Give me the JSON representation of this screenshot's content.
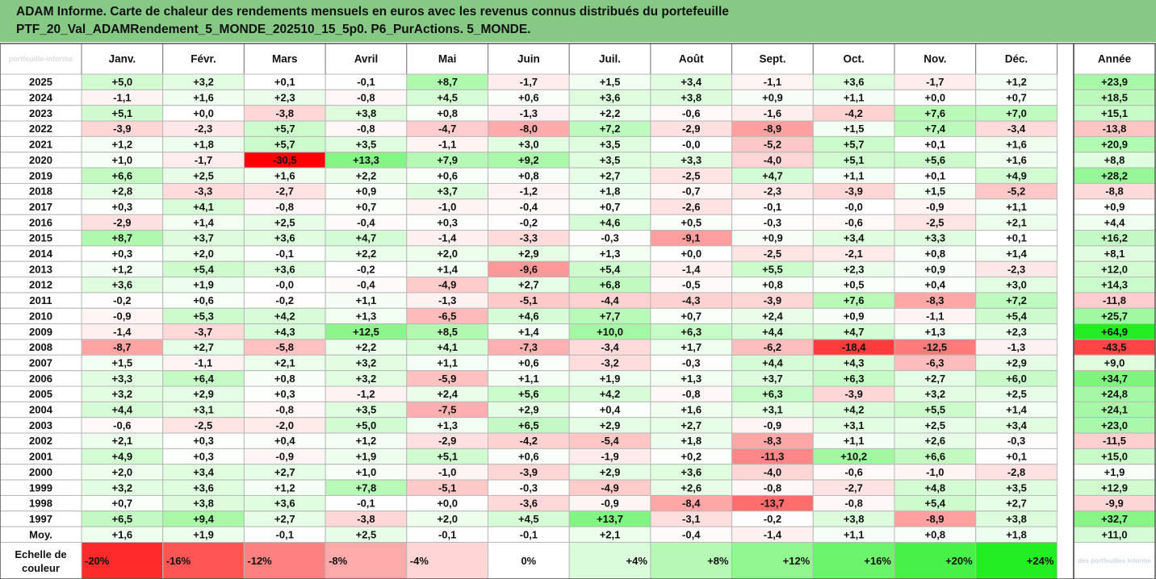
{
  "title": {
    "line1": "ADAM Informe. Carte de chaleur des rendements mensuels en euros avec les revenus connus distribués du portefeuille",
    "line2": "PTF_20_Val_ADAMRendement_5_MONDE_202510_15_5p0. P6_PurActions. 5_MONDE."
  },
  "corner_watermark": "portfeuille-informe",
  "footer_watermark": "des portfeuilles informe",
  "chart_data": {
    "type": "heatmap",
    "months": [
      "Janv.",
      "Févr.",
      "Mars",
      "Avril",
      "Mai",
      "Juin",
      "Juil.",
      "Août",
      "Sept.",
      "Oct.",
      "Nov.",
      "Déc."
    ],
    "year_header": "Année",
    "rows": [
      {
        "label": "2025",
        "values": [
          5.0,
          3.2,
          0.1,
          -0.1,
          8.7,
          -1.7,
          1.5,
          3.4,
          -1.1,
          3.6,
          -1.7,
          1.2
        ],
        "year": 23.9
      },
      {
        "label": "2024",
        "values": [
          -1.1,
          1.6,
          2.3,
          -0.8,
          4.5,
          0.6,
          3.6,
          3.8,
          0.9,
          1.1,
          0.0,
          0.7
        ],
        "year": 18.5
      },
      {
        "label": "2023",
        "values": [
          5.1,
          0.0,
          -3.8,
          3.8,
          0.8,
          -1.3,
          2.2,
          -0.6,
          -1.6,
          -4.2,
          7.6,
          7.0
        ],
        "year": 15.1
      },
      {
        "label": "2022",
        "values": [
          -3.9,
          -2.3,
          5.7,
          -0.8,
          -4.7,
          -8.0,
          7.2,
          -2.9,
          -8.9,
          1.5,
          7.4,
          -3.4
        ],
        "year": -13.8
      },
      {
        "label": "2021",
        "values": [
          1.2,
          1.8,
          5.7,
          3.5,
          -1.1,
          3.0,
          3.5,
          -0.0,
          -5.2,
          5.7,
          0.1,
          1.6
        ],
        "year": 20.9
      },
      {
        "label": "2020",
        "values": [
          1.0,
          -1.7,
          -30.5,
          13.3,
          7.9,
          9.2,
          3.5,
          3.3,
          -4.0,
          5.1,
          5.6,
          1.6
        ],
        "year": 8.8
      },
      {
        "label": "2019",
        "values": [
          6.6,
          2.5,
          1.6,
          2.2,
          0.6,
          0.8,
          2.7,
          -2.5,
          4.7,
          1.1,
          0.1,
          4.9
        ],
        "year": 28.2
      },
      {
        "label": "2018",
        "values": [
          2.8,
          -3.3,
          -2.7,
          0.9,
          3.7,
          -1.2,
          1.8,
          -0.7,
          -2.3,
          -3.9,
          1.5,
          -5.2
        ],
        "year": -8.8
      },
      {
        "label": "2017",
        "values": [
          0.3,
          4.1,
          -0.8,
          0.7,
          -1.0,
          -0.4,
          0.7,
          -2.6,
          -0.1,
          -0.0,
          -0.9,
          1.1
        ],
        "year": 0.9
      },
      {
        "label": "2016",
        "values": [
          -2.9,
          1.4,
          2.5,
          -0.4,
          0.3,
          -0.2,
          4.6,
          0.5,
          -0.3,
          -0.6,
          -2.5,
          2.1
        ],
        "year": 4.4
      },
      {
        "label": "2015",
        "values": [
          8.7,
          3.7,
          3.6,
          4.7,
          -1.4,
          -3.3,
          -0.3,
          -9.1,
          0.9,
          3.4,
          3.3,
          0.1
        ],
        "year": 16.2
      },
      {
        "label": "2014",
        "values": [
          0.3,
          2.0,
          -0.1,
          2.2,
          2.0,
          2.9,
          1.3,
          0.0,
          -2.5,
          -2.1,
          0.8,
          1.4
        ],
        "year": 8.1
      },
      {
        "label": "2013",
        "values": [
          1.2,
          5.4,
          3.6,
          -0.2,
          1.4,
          -9.6,
          5.4,
          -1.4,
          5.5,
          2.3,
          0.9,
          -2.3
        ],
        "year": 12.0
      },
      {
        "label": "2012",
        "values": [
          3.6,
          1.9,
          -0.0,
          -0.4,
          -4.9,
          2.7,
          6.8,
          -0.5,
          0.8,
          0.5,
          0.4,
          3.0
        ],
        "year": 14.3
      },
      {
        "label": "2011",
        "values": [
          -0.2,
          0.6,
          -0.2,
          1.1,
          -1.3,
          -5.1,
          -4.4,
          -4.3,
          -3.9,
          7.6,
          -8.3,
          7.2
        ],
        "year": -11.8
      },
      {
        "label": "2010",
        "values": [
          -0.9,
          5.3,
          4.2,
          1.3,
          -6.5,
          4.6,
          7.7,
          0.7,
          2.4,
          0.9,
          -1.1,
          5.4
        ],
        "year": 25.7
      },
      {
        "label": "2009",
        "values": [
          -1.4,
          -3.7,
          4.3,
          12.5,
          8.5,
          1.4,
          10.0,
          6.3,
          4.4,
          4.7,
          1.3,
          2.3
        ],
        "year": 64.9
      },
      {
        "label": "2008",
        "values": [
          -8.7,
          2.7,
          -5.8,
          2.2,
          4.1,
          -7.3,
          -3.4,
          1.7,
          -6.2,
          -18.4,
          -12.5,
          -1.3
        ],
        "year": -43.5
      },
      {
        "label": "2007",
        "values": [
          1.5,
          -1.1,
          2.1,
          3.2,
          1.1,
          0.6,
          -3.2,
          -0.3,
          4.4,
          4.3,
          -6.3,
          2.9
        ],
        "year": 9.0
      },
      {
        "label": "2006",
        "values": [
          3.3,
          6.4,
          0.8,
          3.2,
          -5.9,
          1.1,
          1.9,
          1.3,
          3.7,
          6.3,
          2.7,
          6.0
        ],
        "year": 34.7
      },
      {
        "label": "2005",
        "values": [
          3.2,
          2.9,
          0.3,
          -1.2,
          2.4,
          5.6,
          4.2,
          -0.8,
          6.3,
          -3.9,
          3.2,
          2.5
        ],
        "year": 24.8
      },
      {
        "label": "2004",
        "values": [
          4.4,
          3.1,
          -0.8,
          3.5,
          -7.5,
          2.9,
          0.4,
          1.6,
          3.1,
          4.2,
          5.5,
          1.4
        ],
        "year": 24.1
      },
      {
        "label": "2003",
        "values": [
          -0.6,
          -2.5,
          -2.0,
          5.0,
          1.3,
          6.5,
          2.9,
          2.7,
          -0.9,
          3.1,
          2.5,
          3.4
        ],
        "year": 23.0
      },
      {
        "label": "2002",
        "values": [
          2.1,
          0.3,
          0.4,
          1.2,
          -2.9,
          -4.2,
          -5.4,
          1.8,
          -8.3,
          1.1,
          2.6,
          -0.3
        ],
        "year": -11.5
      },
      {
        "label": "2001",
        "values": [
          4.9,
          0.3,
          -0.9,
          1.9,
          5.1,
          0.6,
          -1.9,
          0.2,
          -11.3,
          10.2,
          6.6,
          0.1
        ],
        "year": 15.0
      },
      {
        "label": "2000",
        "values": [
          2.0,
          3.4,
          2.7,
          1.0,
          -1.0,
          -3.9,
          2.9,
          3.6,
          -4.0,
          -0.6,
          -1.0,
          -2.8
        ],
        "year": 1.9
      },
      {
        "label": "1999",
        "values": [
          3.2,
          3.6,
          1.2,
          7.8,
          -5.1,
          -0.3,
          -4.9,
          2.6,
          -0.8,
          -2.7,
          4.8,
          3.5
        ],
        "year": 12.9
      },
      {
        "label": "1998",
        "values": [
          0.7,
          3.8,
          3.6,
          -0.1,
          0.0,
          -3.6,
          -0.9,
          -8.4,
          -13.7,
          -0.8,
          5.4,
          2.7
        ],
        "year": -9.9
      },
      {
        "label": "1997",
        "values": [
          6.5,
          9.4,
          2.7,
          -3.8,
          2.0,
          4.5,
          13.7,
          -3.1,
          -0.2,
          3.8,
          -8.9,
          3.8
        ],
        "year": 32.7
      }
    ],
    "average": {
      "label": "Moy.",
      "values": [
        1.6,
        1.9,
        -0.1,
        2.5,
        -0.1,
        -0.1,
        2.1,
        -0.4,
        -1.4,
        1.1,
        0.8,
        1.8
      ],
      "year": 11.0
    },
    "color_scale": {
      "label_line1": "Echelle de",
      "label_line2": "couleur",
      "stops": [
        -20,
        -16,
        -12,
        -8,
        -4,
        0,
        4,
        8,
        12,
        16,
        20,
        24
      ],
      "stop_labels": [
        "-20%",
        "-16%",
        "-12%",
        "-8%",
        "-4%",
        "0%",
        "+4%",
        "+8%",
        "+12%",
        "+16%",
        "+20%",
        "+24%"
      ]
    },
    "colors": {
      "negative_max": "#ff0000",
      "positive_max": "#22ee22",
      "neutral": "#ffffff",
      "title_bar": "#86c984"
    },
    "monthly_saturation_at": 24,
    "annual_saturation_at": 60
  }
}
